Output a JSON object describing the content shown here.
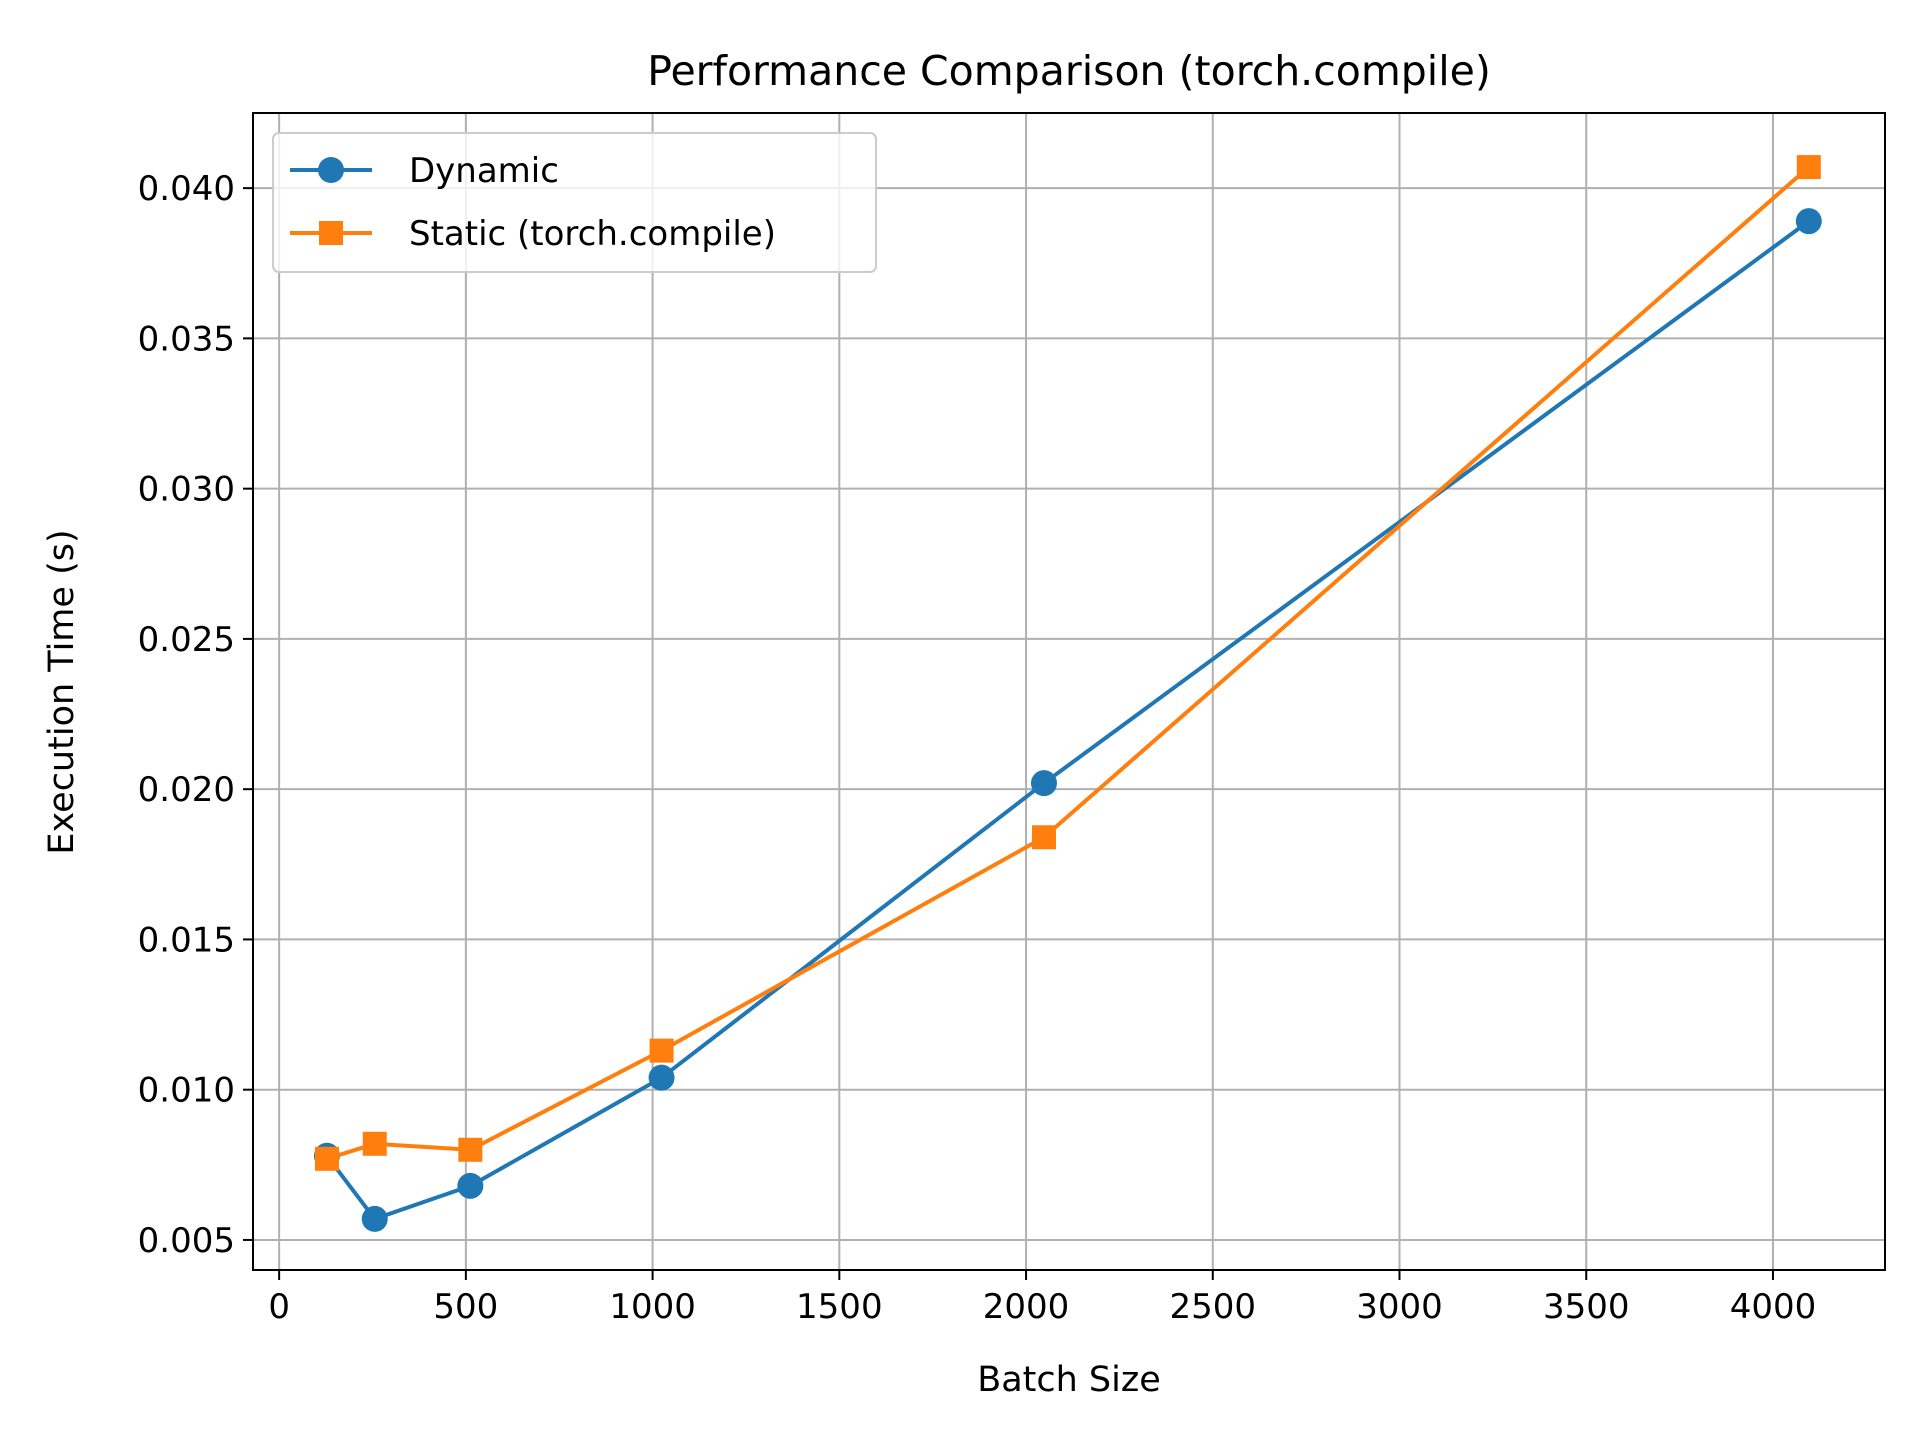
{
  "chart_data": {
    "type": "line",
    "title": "Performance Comparison (torch.compile)",
    "xlabel": "Batch Size",
    "ylabel": "Execution Time (s)",
    "xlim": [
      -70,
      4300
    ],
    "ylim": [
      0.004,
      0.0425
    ],
    "xticks": [
      0,
      500,
      1000,
      1500,
      2000,
      2500,
      3000,
      3500,
      4000
    ],
    "xtick_labels": [
      "0",
      "500",
      "1000",
      "1500",
      "2000",
      "2500",
      "3000",
      "3500",
      "4000"
    ],
    "yticks": [
      0.005,
      0.01,
      0.015,
      0.02,
      0.025,
      0.03,
      0.035,
      0.04
    ],
    "ytick_labels": [
      "0.005",
      "0.010",
      "0.015",
      "0.020",
      "0.025",
      "0.030",
      "0.035",
      "0.040"
    ],
    "grid": true,
    "legend_position": "top-left",
    "x": [
      128,
      256,
      512,
      1024,
      2048,
      4096
    ],
    "series": [
      {
        "name": "Dynamic",
        "color": "#1f77b4",
        "marker": "circle",
        "values": [
          0.0078,
          0.0057,
          0.0068,
          0.0104,
          0.0202,
          0.0389
        ]
      },
      {
        "name": "Static (torch.compile)",
        "color": "#ff7f0e",
        "marker": "square",
        "values": [
          0.0077,
          0.0082,
          0.008,
          0.0113,
          0.0184,
          0.0407
        ]
      }
    ]
  }
}
